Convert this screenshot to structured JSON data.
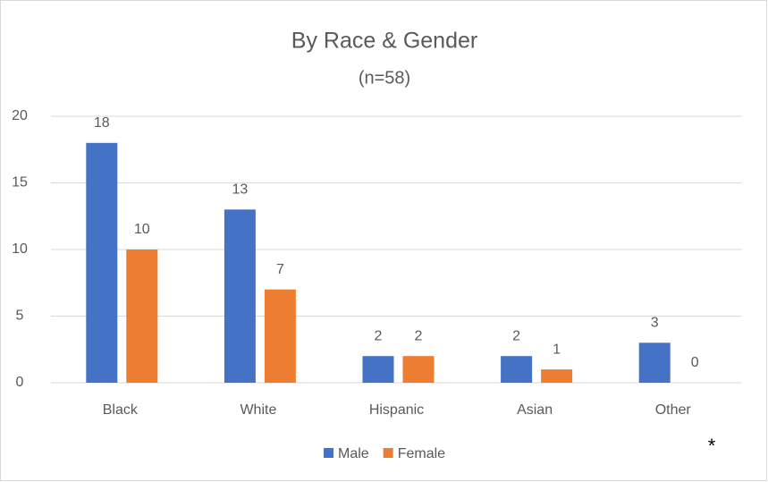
{
  "chart_data": {
    "type": "bar",
    "title": "By Race & Gender",
    "subtitle": "(n=58)",
    "categories": [
      "Black",
      "White",
      "Hispanic",
      "Asian",
      "Other"
    ],
    "series": [
      {
        "name": "Male",
        "color": "#4472c4",
        "values": [
          18,
          13,
          2,
          2,
          3
        ]
      },
      {
        "name": "Female",
        "color": "#ed7d31",
        "values": [
          10,
          7,
          2,
          1,
          0
        ]
      }
    ],
    "ylim": [
      0,
      20
    ],
    "yticks": [
      0,
      5,
      10,
      15,
      20
    ],
    "grid": true,
    "legend": "bottom",
    "annotation": "*"
  }
}
